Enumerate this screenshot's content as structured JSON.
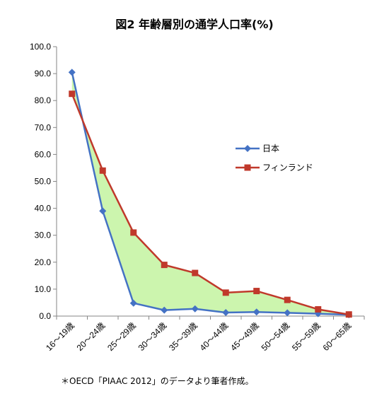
{
  "chart_data": {
    "type": "line",
    "title": "図2 年齢層別の通学人口率(%)",
    "categories": [
      "16～19歳",
      "20～24歳",
      "25～29歳",
      "30～34歳",
      "35～39歳",
      "40～44歳",
      "45～49歳",
      "50～54歳",
      "55～59歳",
      "60～65歳"
    ],
    "series": [
      {
        "name": "日本",
        "color": "#4472C4",
        "marker": "diamond",
        "values": [
          90.5,
          39.0,
          4.8,
          2.2,
          2.7,
          1.3,
          1.5,
          1.2,
          0.9,
          0.5
        ]
      },
      {
        "name": "フィンランド",
        "color": "#C0392B",
        "marker": "square",
        "values": [
          82.5,
          54.0,
          31.0,
          19.0,
          16.0,
          8.7,
          9.3,
          6.0,
          2.5,
          0.6
        ]
      }
    ],
    "fill_between_color": "#CCF5AE",
    "yticks": [
      "0.0",
      "10.0",
      "20.0",
      "30.0",
      "40.0",
      "50.0",
      "60.0",
      "70.0",
      "80.0",
      "90.0",
      "100.0"
    ],
    "ylim": [
      0,
      100
    ],
    "legend_position": "right-middle",
    "grid": false
  },
  "note": "＊OECD「PIAAC 2012」のデータより筆者作成。"
}
